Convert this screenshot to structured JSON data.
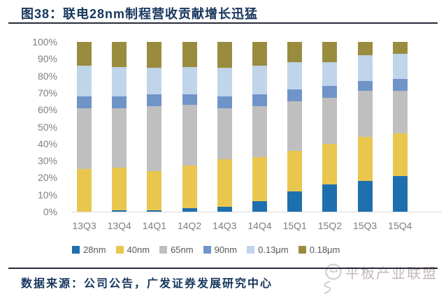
{
  "header": {
    "title": "图38：联电28nm制程营收贡献增长迅猛"
  },
  "footer": {
    "source": "数据来源：公司公告，广发证券发展研究中心"
  },
  "watermark": {
    "text": "平板产业联盟"
  },
  "colors": {
    "title_text": "#17365d",
    "rule": "#272b39",
    "axis_line": "#d9d9d9",
    "tick_label": "#7f7f7f",
    "legend_label": "#595959",
    "watermark": "#c6b7b7"
  },
  "chart_data": {
    "type": "bar",
    "subtype": "stacked-100-percent",
    "title": "联电28nm制程营收贡献增长迅猛",
    "xlabel": "",
    "ylabel": "",
    "ylim": [
      0,
      100
    ],
    "grid": false,
    "legend_position": "bottom",
    "y_ticks": [
      "100%",
      "90%",
      "80%",
      "70%",
      "60%",
      "50%",
      "40%",
      "30%",
      "20%",
      "10%",
      "0%"
    ],
    "categories": [
      "13Q3",
      "13Q4",
      "14Q1",
      "14Q2",
      "14Q3",
      "14Q4",
      "15Q1",
      "15Q2",
      "15Q3",
      "15Q4"
    ],
    "series": [
      {
        "name": "28nm",
        "color": "#1e6fae",
        "values": [
          0,
          1,
          1,
          2,
          3,
          6,
          12,
          16,
          18,
          21
        ]
      },
      {
        "name": "40nm",
        "color": "#e9c74f",
        "values": [
          25,
          25,
          23,
          25,
          28,
          26,
          24,
          24,
          26,
          25
        ]
      },
      {
        "name": "65nm",
        "color": "#bfbfbf",
        "values": [
          36,
          35,
          38,
          36,
          30,
          30,
          29,
          27,
          27,
          25
        ]
      },
      {
        "name": "90nm",
        "color": "#7094c8",
        "values": [
          7,
          7,
          7,
          6,
          7,
          7,
          7,
          7,
          6,
          7
        ]
      },
      {
        "name": "0.13μm",
        "color": "#c0d4ea",
        "values": [
          18,
          17,
          16,
          16,
          17,
          17,
          16,
          14,
          15,
          15
        ]
      },
      {
        "name": "0.18μm",
        "color": "#9a8c3e",
        "values": [
          14,
          15,
          15,
          15,
          15,
          14,
          12,
          12,
          8,
          7
        ]
      }
    ]
  }
}
